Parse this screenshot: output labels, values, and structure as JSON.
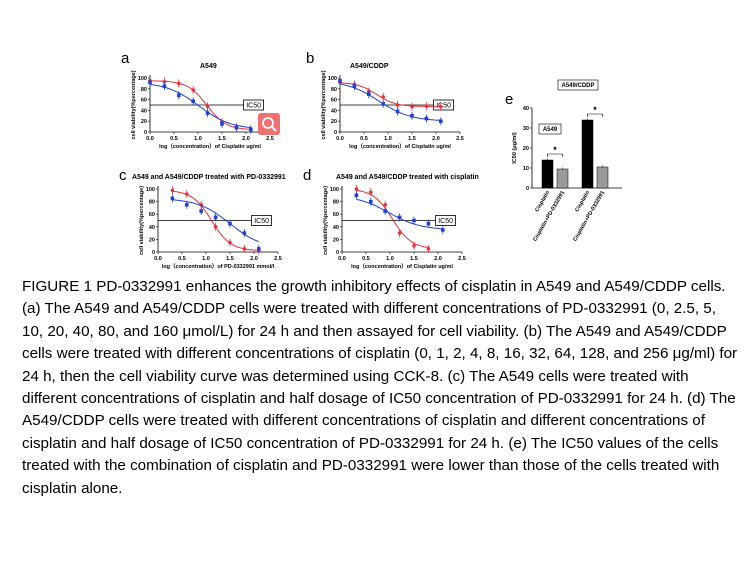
{
  "figure": {
    "panel_letters": [
      "a",
      "b",
      "c",
      "d",
      "e"
    ],
    "ic50_label": "IC50",
    "colors": {
      "red": "#e8323a",
      "blue": "#1f3fd6",
      "black": "#000000",
      "gray": "#9a9a9a",
      "accent_button": "#f07070"
    },
    "zoom_button_icon": "magnifier-icon"
  },
  "chart_data": [
    {
      "panel": "a",
      "type": "scatter",
      "title": "A549",
      "xlabel": "log（concentration）of Cisplatin ug/ml",
      "ylabel": "cell viability(%percentage)",
      "xlim": [
        0,
        2.5
      ],
      "ylim": [
        0,
        100
      ],
      "xticks": [
        "0.0",
        "0.5",
        "1.0",
        "1.5",
        "2.0",
        "2.5"
      ],
      "yticks": [
        "0",
        "20",
        "40",
        "60",
        "80",
        "100"
      ],
      "reference_line": 50,
      "series": [
        {
          "color": "red",
          "x": [
            0.0,
            0.3,
            0.6,
            0.9,
            1.2,
            1.5,
            1.8,
            2.1
          ],
          "y": [
            95,
            93,
            90,
            78,
            48,
            18,
            8,
            4
          ]
        },
        {
          "color": "blue",
          "x": [
            0.0,
            0.3,
            0.6,
            0.9,
            1.2,
            1.5,
            1.8,
            2.1
          ],
          "y": [
            92,
            85,
            68,
            57,
            35,
            15,
            8,
            5
          ]
        }
      ]
    },
    {
      "panel": "b",
      "type": "scatter",
      "title": "A549/CDDP",
      "xlabel": "log（concentration）of Cisplatin ug/ml",
      "ylabel": "cell viability(%percentage)",
      "xlim": [
        0,
        2.5
      ],
      "ylim": [
        0,
        100
      ],
      "xticks": [
        "0.0",
        "0.5",
        "1.0",
        "1.5",
        "2.0",
        "2.5"
      ],
      "yticks": [
        "0",
        "20",
        "40",
        "60",
        "80",
        "100"
      ],
      "reference_line": 50,
      "series": [
        {
          "color": "red",
          "x": [
            0.0,
            0.3,
            0.6,
            0.9,
            1.2,
            1.5,
            1.8,
            2.1
          ],
          "y": [
            92,
            88,
            75,
            65,
            50,
            47,
            48,
            47
          ]
        },
        {
          "color": "blue",
          "x": [
            0.0,
            0.3,
            0.6,
            0.9,
            1.2,
            1.5,
            1.8,
            2.1
          ],
          "y": [
            95,
            85,
            70,
            52,
            38,
            30,
            25,
            20
          ]
        }
      ]
    },
    {
      "panel": "c",
      "type": "scatter",
      "title": "A549 and A549/CDDP treated with PD-0332991",
      "xlabel": "log（concentration）of PD-0332991 mmol/l",
      "ylabel": "cell viability(%percentage)",
      "xlim": [
        0,
        2.5
      ],
      "ylim": [
        0,
        100
      ],
      "xticks": [
        "0.0",
        "0.5",
        "1.0",
        "1.5",
        "2.0",
        "2.5"
      ],
      "yticks": [
        "0",
        "20",
        "40",
        "60",
        "80",
        "100"
      ],
      "reference_line": 50,
      "series": [
        {
          "color": "red",
          "x": [
            0.3,
            0.6,
            0.9,
            1.2,
            1.5,
            1.8,
            2.1
          ],
          "y": [
            98,
            92,
            75,
            40,
            15,
            5,
            2
          ]
        },
        {
          "color": "blue",
          "x": [
            0.3,
            0.6,
            0.9,
            1.2,
            1.5,
            1.8,
            2.1
          ],
          "y": [
            85,
            75,
            65,
            55,
            45,
            30,
            5
          ]
        }
      ]
    },
    {
      "panel": "d",
      "type": "scatter",
      "title": "A549 and A549/CDDP treated with cisplatin",
      "xlabel": "log（concentration）of Cisplatin ug/ml",
      "ylabel": "cell viability(%percentage)",
      "xlim": [
        0,
        2.5
      ],
      "ylim": [
        0,
        100
      ],
      "xticks": [
        "0.0",
        "0.5",
        "1.0",
        "1.5",
        "2.0",
        "2.5"
      ],
      "yticks": [
        "0",
        "20",
        "40",
        "60",
        "80",
        "100"
      ],
      "reference_line": 50,
      "series": [
        {
          "color": "red",
          "x": [
            0.3,
            0.6,
            0.9,
            1.2,
            1.5,
            1.8
          ],
          "y": [
            100,
            95,
            75,
            30,
            10,
            5
          ]
        },
        {
          "color": "blue",
          "x": [
            0.3,
            0.6,
            0.9,
            1.2,
            1.5,
            1.8,
            2.1
          ],
          "y": [
            90,
            80,
            65,
            55,
            50,
            45,
            35
          ]
        }
      ]
    },
    {
      "panel": "e",
      "type": "bar",
      "ylabel": "IC50 (μg/ml)",
      "ylim": [
        0,
        40
      ],
      "yticks": [
        "0",
        "10",
        "20",
        "30",
        "40"
      ],
      "groups": [
        "A549",
        "A549/CDDP"
      ],
      "categories": [
        "Cisplatin",
        "Cisplatin+PD-0332991",
        "Cisplatin",
        "Cisplatin+PD-0332991"
      ],
      "values": [
        14,
        9.5,
        34,
        10.5
      ],
      "bar_colors": [
        "black",
        "gray",
        "black",
        "gray"
      ],
      "significance": [
        "*",
        "*"
      ]
    }
  ],
  "caption": "FIGURE 1 PD-0332991 enhances the growth inhibitory effects of cisplatin in A549 and A549/CDDP cells. (a) The A549 and A549/CDDP cells were treated with different concentrations of PD-0332991 (0, 2.5, 5, 10, 20, 40, 80, and 160 μmol/L) for 24 h and then assayed for cell viability. (b) The A549 and A549/CDDP cells were treated with different concentrations of cisplatin (0, 1, 2, 4, 8, 16, 32, 64, 128, and 256 μg/ml) for 24 h, then the cell viability curve was determined using CCK-8. (c) The A549 cells were treated with different concentrations of cisplatin and half dosage of IC50 concentration of PD-0332991 for 24 h. (d) The A549/CDDP cells were treated with different concentrations of cisplatin and different concentrations of cisplatin and half dosage of IC50 concentration of PD-0332991 for 24 h. (e) The IC50 values of the cells treated with the combination of cisplatin and PD-0332991 were lower than those of the cells treated with cisplatin alone."
}
